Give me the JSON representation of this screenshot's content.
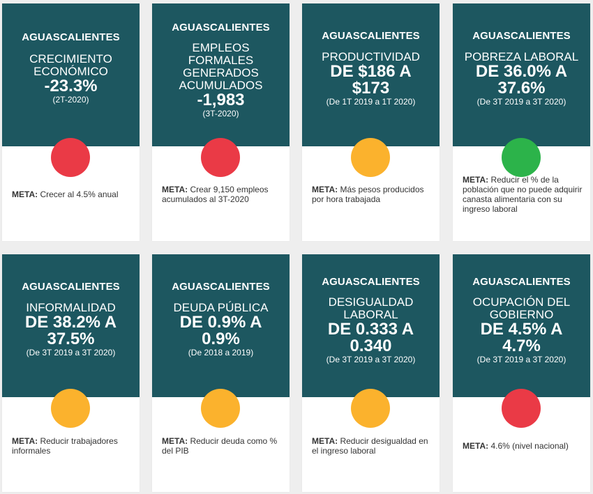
{
  "state_label": "AGUASCALIENTES",
  "meta_label": "META:",
  "status_colors": {
    "red": "#ea3a46",
    "yellow": "#fbb22d",
    "green": "#2cb34a"
  },
  "cards": [
    {
      "indicator": "CRECIMIENTO\nECONÓMICO",
      "value": "-23.3%",
      "period": "(2T-2020)",
      "status": "red",
      "meta_text": "Crecer al 4.5% anual"
    },
    {
      "indicator": "EMPLEOS\nFORMALES\nGENERADOS\nACUMULADOS",
      "value": "-1,983",
      "period": "(3T-2020)",
      "status": "red",
      "meta_text": "Crear 9,150 empleos acumulados al 3T-2020"
    },
    {
      "indicator": "PRODUCTIVIDAD",
      "value": "DE $186 A\n$173",
      "period": "(De 1T 2019 a 1T 2020)",
      "status": "yellow",
      "meta_text": "Más pesos producidos por hora trabajada"
    },
    {
      "indicator": "POBREZA LABORAL",
      "value": "DE 36.0% A\n37.6%",
      "period": "(De 3T 2019 a 3T 2020)",
      "status": "green",
      "meta_text": "Reducir el % de la población que no puede adquirir canasta alimentaria con su ingreso laboral"
    },
    {
      "indicator": "INFORMALIDAD",
      "value": "DE 38.2% A\n37.5%",
      "period": "(De 3T 2019 a 3T 2020)",
      "status": "yellow",
      "meta_text": "Reducir trabajadores informales"
    },
    {
      "indicator": "DEUDA PÚBLICA",
      "value": "DE 0.9% A\n0.9%",
      "period": "(De 2018 a 2019)",
      "status": "yellow",
      "meta_text": "Reducir deuda como % del PIB"
    },
    {
      "indicator": "DESIGUALDAD\nLABORAL",
      "value": "DE 0.333 A\n0.340",
      "period": "(De 3T 2019 a 3T 2020)",
      "status": "yellow",
      "meta_text": "Reducir desigualdad en el ingreso laboral"
    },
    {
      "indicator": "OCUPACIÓN DEL\nGOBIERNO",
      "value": "DE 4.5% A\n4.7%",
      "period": "(De 3T 2019 a 3T 2020)",
      "status": "red",
      "meta_text": "4.6% (nivel nacional)"
    }
  ]
}
